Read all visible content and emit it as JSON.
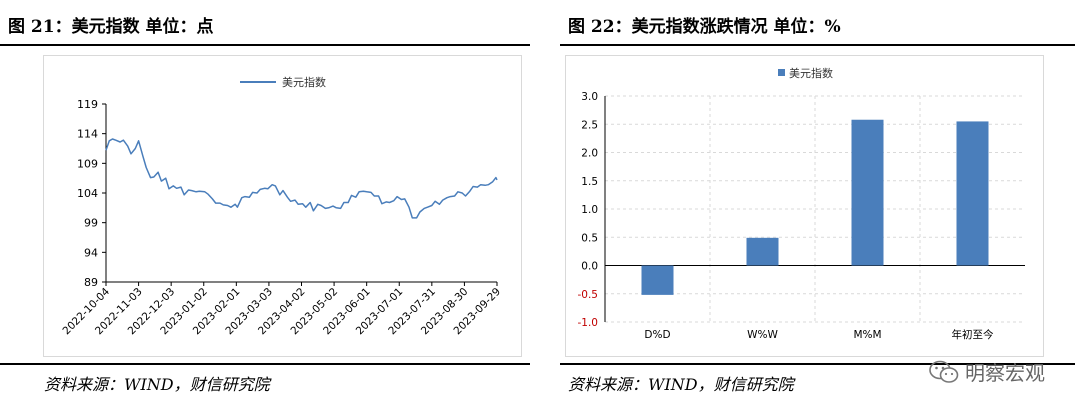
{
  "left": {
    "title": "图 21：美元指数  单位：点",
    "source": "资料来源：WIND，财信研究院",
    "chart_data": {
      "type": "line",
      "legend": "美元指数",
      "legend_position": "top",
      "ylim": [
        89,
        119
      ],
      "y_ticks": [
        89,
        94,
        99,
        104,
        109,
        114,
        119
      ],
      "x_ticks": [
        "2022-10-04",
        "2022-11-03",
        "2022-12-03",
        "2023-01-02",
        "2023-02-01",
        "2023-03-03",
        "2023-04-02",
        "2023-05-02",
        "2023-06-01",
        "2023-07-01",
        "2023-07-31",
        "2023-08-30",
        "2023-09-29"
      ],
      "grid": false,
      "color": "#4a7ebb",
      "series": [
        {
          "name": "美元指数",
          "x": [
            "2022-10-04",
            "2022-10-07",
            "2022-10-10",
            "2022-10-13",
            "2022-10-17",
            "2022-10-20",
            "2022-10-24",
            "2022-10-27",
            "2022-10-31",
            "2022-11-03",
            "2022-11-07",
            "2022-11-10",
            "2022-11-14",
            "2022-11-17",
            "2022-11-21",
            "2022-11-24",
            "2022-11-28",
            "2022-12-01",
            "2022-12-05",
            "2022-12-08",
            "2022-12-12",
            "2022-12-15",
            "2022-12-19",
            "2022-12-22",
            "2022-12-26",
            "2022-12-29",
            "2023-01-03",
            "2023-01-06",
            "2023-01-10",
            "2023-01-13",
            "2023-01-17",
            "2023-01-20",
            "2023-01-24",
            "2023-01-27",
            "2023-01-31",
            "2023-02-02",
            "2023-02-06",
            "2023-02-09",
            "2023-02-13",
            "2023-02-16",
            "2023-02-20",
            "2023-02-23",
            "2023-02-27",
            "2023-03-02",
            "2023-03-06",
            "2023-03-09",
            "2023-03-13",
            "2023-03-16",
            "2023-03-20",
            "2023-03-23",
            "2023-03-27",
            "2023-03-30",
            "2023-04-03",
            "2023-04-06",
            "2023-04-10",
            "2023-04-13",
            "2023-04-17",
            "2023-04-20",
            "2023-04-24",
            "2023-04-27",
            "2023-05-01",
            "2023-05-04",
            "2023-05-08",
            "2023-05-11",
            "2023-05-15",
            "2023-05-18",
            "2023-05-22",
            "2023-05-25",
            "2023-05-29",
            "2023-06-01",
            "2023-06-05",
            "2023-06-08",
            "2023-06-12",
            "2023-06-15",
            "2023-06-19",
            "2023-06-22",
            "2023-06-26",
            "2023-06-29",
            "2023-07-03",
            "2023-07-06",
            "2023-07-10",
            "2023-07-13",
            "2023-07-17",
            "2023-07-20",
            "2023-07-24",
            "2023-07-27",
            "2023-07-31",
            "2023-08-03",
            "2023-08-07",
            "2023-08-10",
            "2023-08-14",
            "2023-08-17",
            "2023-08-21",
            "2023-08-24",
            "2023-08-28",
            "2023-08-31",
            "2023-09-04",
            "2023-09-07",
            "2023-09-11",
            "2023-09-14",
            "2023-09-18",
            "2023-09-21",
            "2023-09-25",
            "2023-09-28",
            "2023-09-29"
          ],
          "y": [
            111.2,
            112.8,
            113.1,
            112.9,
            112.6,
            112.9,
            111.9,
            110.6,
            111.5,
            112.8,
            110.2,
            108.3,
            106.6,
            106.7,
            107.5,
            106.0,
            106.5,
            104.7,
            105.2,
            104.8,
            105.0,
            103.7,
            104.5,
            104.4,
            104.2,
            104.3,
            104.2,
            103.8,
            103.0,
            102.3,
            102.3,
            102.0,
            101.9,
            101.6,
            102.1,
            101.6,
            103.2,
            103.4,
            103.3,
            104.1,
            104.0,
            104.6,
            104.8,
            104.7,
            105.4,
            105.2,
            103.7,
            104.4,
            103.3,
            102.6,
            102.8,
            102.1,
            102.2,
            101.6,
            102.4,
            101.0,
            102.1,
            101.9,
            101.4,
            101.5,
            101.8,
            101.5,
            101.4,
            102.4,
            102.4,
            103.6,
            103.3,
            104.2,
            104.3,
            104.2,
            104.1,
            103.5,
            103.5,
            102.2,
            102.5,
            102.4,
            102.7,
            103.4,
            102.9,
            103.0,
            101.6,
            99.8,
            99.8,
            100.8,
            101.4,
            101.6,
            101.9,
            102.6,
            102.1,
            102.8,
            103.2,
            103.4,
            103.5,
            104.2,
            104.0,
            103.5,
            104.3,
            105.1,
            105.0,
            105.4,
            105.3,
            105.4,
            105.9,
            106.6,
            106.2
          ]
        }
      ]
    }
  },
  "right": {
    "title": "图 22：美元指数涨跌情况  单位：%",
    "source": "资料来源：WIND，财信研究院",
    "watermark": "明察宏观",
    "chart_data": {
      "type": "bar",
      "legend": "美元指数",
      "legend_position": "top",
      "categories": [
        "D%D",
        "W%W",
        "M%M",
        "年初至今"
      ],
      "series": [
        {
          "name": "美元指数",
          "values": [
            -0.52,
            0.49,
            2.58,
            2.55
          ]
        }
      ],
      "ylim": [
        -1.0,
        3.0
      ],
      "y_ticks": [
        "-1.0",
        "-0.5",
        "0.0",
        "0.5",
        "1.0",
        "1.5",
        "2.0",
        "2.5",
        "3.0"
      ],
      "grid": true,
      "color": "#4a7ebb",
      "negative_label_color": "#c00000"
    }
  }
}
